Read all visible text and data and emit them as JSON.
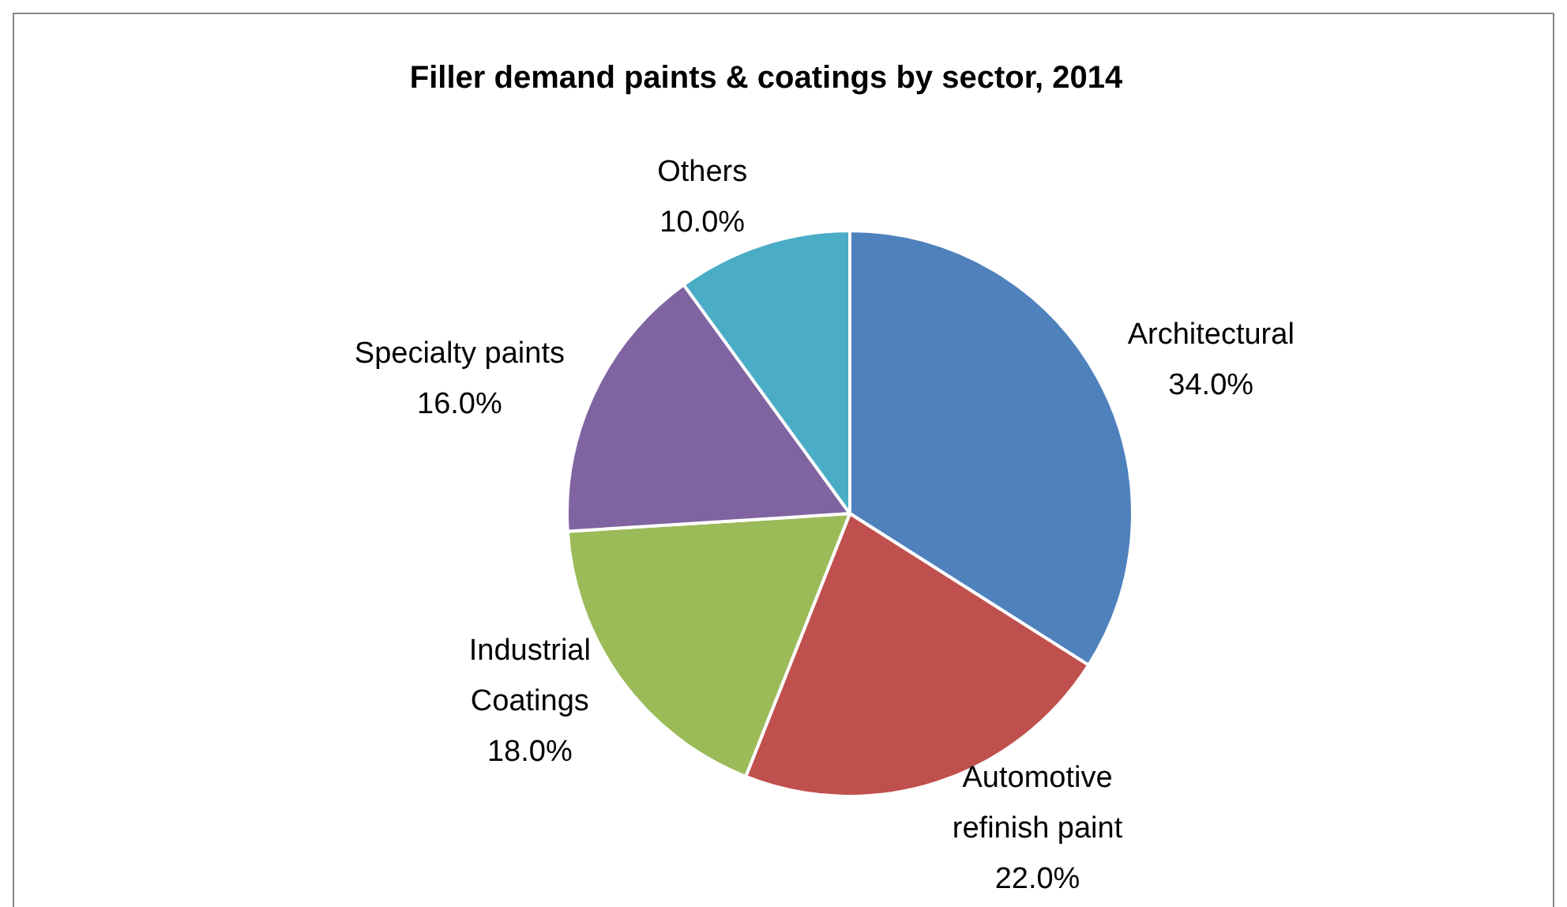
{
  "chart_data": {
    "type": "pie",
    "title": "Filler demand paints & coatings by sector, 2014",
    "categories": [
      "Architectural",
      "Automotive refinish paint",
      "Industrial Coatings",
      "Specialty paints",
      "Others"
    ],
    "values": [
      34,
      22,
      18,
      16,
      10
    ],
    "value_labels": [
      "34.0%",
      "22.0%",
      "18.0%",
      "16.0%",
      "10.0%"
    ],
    "colors": [
      "#4f81bd",
      "#c0504d",
      "#9bbb59",
      "#8064a2",
      "#4bacc6"
    ],
    "legend": false
  }
}
